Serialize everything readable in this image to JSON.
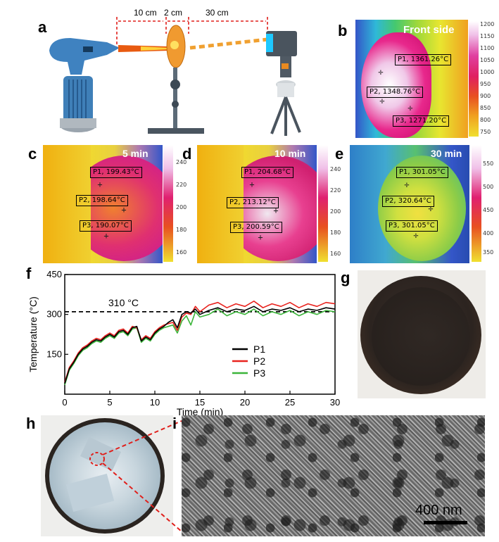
{
  "panels": {
    "a": "a",
    "b": "b",
    "c": "c",
    "d": "d",
    "e": "e",
    "f": "f",
    "g": "g",
    "h": "h",
    "i": "i"
  },
  "setup": {
    "dim1": "10 cm",
    "dim2": "2 cm",
    "dim3": "30 cm"
  },
  "thermal_b": {
    "title": "Front side",
    "probes": [
      "P1, 1361.26°C",
      "P2, 1348.76°C",
      "P3, 1271.20°C"
    ],
    "scale": [
      "1200",
      "1150",
      "1100",
      "1050",
      "1000",
      "950",
      "900",
      "850",
      "800",
      "750"
    ]
  },
  "thermal_c": {
    "title": "5 min",
    "probes": [
      "P1, 199.43°C",
      "P2, 198.64°C",
      "P3, 190.07°C"
    ],
    "scale": [
      "240",
      "220",
      "200",
      "180",
      "160"
    ]
  },
  "thermal_d": {
    "title": "10 min",
    "probes": [
      "P1, 204.68°C",
      "P2, 213.12°C",
      "P3, 200.59°C"
    ],
    "scale": [
      "240",
      "220",
      "200",
      "180",
      "160"
    ]
  },
  "thermal_e": {
    "title": "30 min",
    "probes": [
      "P1, 301.05°C",
      "P2, 320.64°C",
      "P3, 301.05°C"
    ],
    "scale": [
      "550",
      "500",
      "450",
      "400",
      "350"
    ]
  },
  "colors": {
    "P1": "#000000",
    "P2": "#e8231e",
    "P3": "#3bb53a",
    "dashed": "#000000",
    "zoom_lines": "#e0201c"
  },
  "chart_data": {
    "type": "line",
    "xlabel": "Time (min)",
    "ylabel": "Temperature (°C)",
    "xlim": [
      0,
      30
    ],
    "ylim": [
      0,
      450
    ],
    "xticks": [
      0,
      5,
      10,
      15,
      20,
      25,
      30
    ],
    "yticks": [
      150,
      300,
      450
    ],
    "reference": {
      "value": 310,
      "label": "310 °C",
      "style": "dashed"
    },
    "legend_position": "lower-right",
    "series": [
      {
        "name": "P1",
        "x": [
          0,
          0.5,
          1,
          1.5,
          2,
          2.5,
          3,
          3.5,
          4,
          4.5,
          5,
          5.5,
          6,
          6.5,
          7,
          7.5,
          8,
          8.5,
          9,
          9.5,
          10,
          10.5,
          11,
          11.5,
          12,
          12.5,
          13,
          13.5,
          14,
          14.5,
          15,
          16,
          17,
          18,
          19,
          20,
          21,
          22,
          23,
          24,
          25,
          26,
          27,
          28,
          29,
          30
        ],
        "y": [
          40,
          95,
          120,
          150,
          170,
          180,
          195,
          205,
          200,
          215,
          225,
          215,
          235,
          240,
          225,
          250,
          255,
          200,
          215,
          205,
          230,
          245,
          255,
          270,
          280,
          250,
          300,
          310,
          305,
          320,
          300,
          315,
          325,
          310,
          320,
          315,
          330,
          310,
          320,
          315,
          325,
          310,
          320,
          315,
          325,
          320
        ]
      },
      {
        "name": "P2",
        "x": [
          0,
          0.5,
          1,
          1.5,
          2,
          2.5,
          3,
          3.5,
          4,
          4.5,
          5,
          5.5,
          6,
          6.5,
          7,
          7.5,
          8,
          8.5,
          9,
          9.5,
          10,
          10.5,
          11,
          11.5,
          12,
          12.5,
          13,
          13.5,
          14,
          14.5,
          15,
          16,
          17,
          18,
          19,
          20,
          21,
          22,
          23,
          24,
          25,
          26,
          27,
          28,
          29,
          30
        ],
        "y": [
          45,
          100,
          125,
          155,
          175,
          185,
          200,
          210,
          205,
          220,
          230,
          220,
          240,
          245,
          230,
          255,
          250,
          205,
          220,
          210,
          235,
          250,
          260,
          265,
          270,
          240,
          290,
          305,
          300,
          330,
          310,
          335,
          345,
          325,
          340,
          330,
          350,
          325,
          340,
          330,
          345,
          325,
          340,
          330,
          345,
          340
        ]
      },
      {
        "name": "P3",
        "x": [
          0,
          0.5,
          1,
          1.5,
          2,
          2.5,
          3,
          3.5,
          4,
          4.5,
          5,
          5.5,
          6,
          6.5,
          7,
          7.5,
          8,
          8.5,
          9,
          9.5,
          10,
          10.5,
          11,
          11.5,
          12,
          12.5,
          13,
          13.5,
          14,
          14.5,
          15,
          16,
          17,
          18,
          19,
          20,
          21,
          22,
          23,
          24,
          25,
          26,
          27,
          28,
          29,
          30
        ],
        "y": [
          35,
          90,
          115,
          145,
          165,
          175,
          190,
          200,
          195,
          210,
          220,
          210,
          230,
          235,
          220,
          245,
          250,
          195,
          210,
          200,
          225,
          240,
          250,
          255,
          260,
          230,
          275,
          295,
          260,
          310,
          290,
          300,
          320,
          295,
          310,
          300,
          320,
          295,
          310,
          300,
          315,
          295,
          310,
          300,
          315,
          310
        ]
      }
    ]
  },
  "sem": {
    "scale_label": "400 nm"
  }
}
